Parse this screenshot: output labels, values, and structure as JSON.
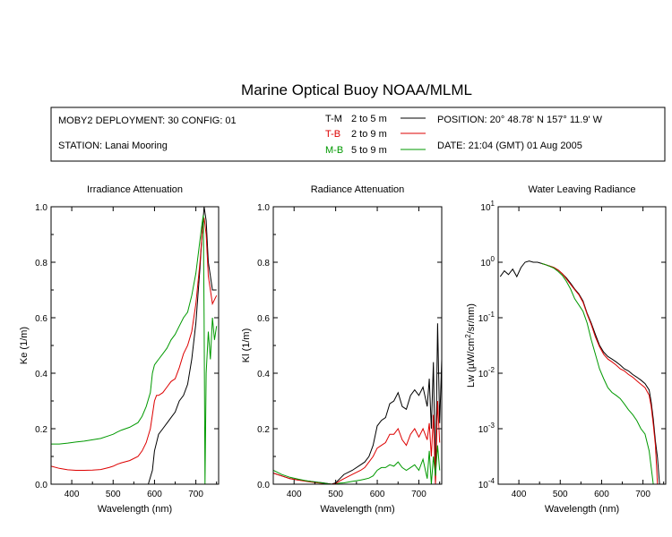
{
  "title": "Marine Optical Buoy NOAA/MLML",
  "info": {
    "deployment": "MOBY2 DEPLOYMENT: 30 CONFIG: 01",
    "station": "STATION: Lanai Mooring",
    "legend": [
      {
        "code": "T-M",
        "range": "2 to 5  m",
        "color": "#000000"
      },
      {
        "code": "T-B",
        "range": "2 to 9  m",
        "color": "#dd0000"
      },
      {
        "code": "M-B",
        "range": "5 to 9  m",
        "color": "#009900"
      }
    ],
    "position": "POSITION: 20° 48.78' N   157° 11.9' W",
    "date": "DATE: 21:04 (GMT) 01 Aug 2005"
  },
  "colors": {
    "T-M": "#000000",
    "T-B": "#dd0000",
    "M-B": "#009900"
  },
  "chart_data": [
    {
      "type": "line",
      "title": "Irradiance Attenuation",
      "xlabel": "Wavelength (nm)",
      "ylabel": "Ke  (1/m)",
      "xlim": [
        350,
        755
      ],
      "ylim": [
        0,
        1
      ],
      "xticks": [
        "400",
        "500",
        "600",
        "700"
      ],
      "xtick_values": [
        400,
        500,
        600,
        700
      ],
      "yticks": [
        "0.0",
        "0.2",
        "0.4",
        "0.6",
        "0.8",
        "1.0"
      ],
      "ytick_values": [
        0,
        0.2,
        0.4,
        0.6,
        0.8,
        1.0
      ],
      "series": [
        {
          "name": "T-M",
          "x": [
            585,
            595,
            600,
            610,
            620,
            630,
            640,
            650,
            660,
            670,
            680,
            690,
            700,
            710,
            715,
            720,
            725,
            730,
            740,
            750
          ],
          "y": [
            0.0,
            0.05,
            0.12,
            0.18,
            0.2,
            0.22,
            0.24,
            0.26,
            0.3,
            0.32,
            0.36,
            0.45,
            0.58,
            0.78,
            0.9,
            1.0,
            0.95,
            0.8,
            0.7,
            0.7
          ]
        },
        {
          "name": "T-B",
          "x": [
            350,
            370,
            390,
            410,
            430,
            450,
            470,
            490,
            500,
            510,
            520,
            540,
            560,
            570,
            580,
            590,
            595,
            600,
            605,
            610,
            620,
            630,
            640,
            650,
            660,
            670,
            680,
            690,
            700,
            710,
            715,
            720,
            725,
            730,
            740,
            750
          ],
          "y": [
            0.065,
            0.057,
            0.052,
            0.05,
            0.05,
            0.051,
            0.053,
            0.06,
            0.065,
            0.072,
            0.077,
            0.085,
            0.1,
            0.12,
            0.15,
            0.2,
            0.25,
            0.3,
            0.32,
            0.32,
            0.33,
            0.35,
            0.37,
            0.38,
            0.42,
            0.47,
            0.5,
            0.55,
            0.65,
            0.8,
            0.9,
            0.96,
            0.9,
            0.75,
            0.65,
            0.68
          ]
        },
        {
          "name": "M-B",
          "x": [
            350,
            370,
            390,
            410,
            430,
            450,
            470,
            490,
            500,
            510,
            520,
            540,
            560,
            570,
            580,
            590,
            595,
            600,
            605,
            610,
            620,
            630,
            640,
            650,
            660,
            670,
            680,
            690,
            700,
            710,
            715,
            718,
            720,
            722,
            725,
            730,
            735,
            740,
            745,
            750
          ],
          "y": [
            0.145,
            0.145,
            0.148,
            0.152,
            0.155,
            0.16,
            0.165,
            0.175,
            0.18,
            0.188,
            0.195,
            0.205,
            0.222,
            0.245,
            0.28,
            0.33,
            0.4,
            0.43,
            0.44,
            0.45,
            0.47,
            0.49,
            0.52,
            0.54,
            0.57,
            0.6,
            0.62,
            0.68,
            0.76,
            0.88,
            0.94,
            0.97,
            0.6,
            0.0,
            0.4,
            0.55,
            0.45,
            0.6,
            0.52,
            0.57
          ]
        }
      ]
    },
    {
      "type": "line",
      "title": "Radiance Attenuation",
      "xlabel": "Wavelength (nm)",
      "ylabel": "Kl  (1/m)",
      "xlim": [
        350,
        755
      ],
      "ylim": [
        0,
        1
      ],
      "xticks": [
        "400",
        "500",
        "600",
        "700"
      ],
      "xtick_values": [
        400,
        500,
        600,
        700
      ],
      "yticks": [
        "0.0",
        "0.2",
        "0.4",
        "0.6",
        "0.8",
        "1.0"
      ],
      "ytick_values": [
        0,
        0.2,
        0.4,
        0.6,
        0.8,
        1.0
      ],
      "series": [
        {
          "name": "T-M",
          "x": [
            350,
            370,
            390,
            410,
            430,
            450,
            470,
            490,
            500,
            510,
            520,
            540,
            560,
            570,
            580,
            590,
            600,
            610,
            620,
            630,
            640,
            650,
            660,
            670,
            680,
            690,
            700,
            710,
            720,
            725,
            730,
            735,
            740,
            745,
            750,
            755
          ],
          "y": [
            0.04,
            0.03,
            0.02,
            0.015,
            0.012,
            0.008,
            0.005,
            0.0,
            0.005,
            0.02,
            0.035,
            0.05,
            0.07,
            0.08,
            0.1,
            0.14,
            0.21,
            0.23,
            0.24,
            0.29,
            0.3,
            0.33,
            0.28,
            0.27,
            0.32,
            0.34,
            0.32,
            0.35,
            0.28,
            0.38,
            0.2,
            0.44,
            0.0,
            0.58,
            0.22,
            0.45
          ]
        },
        {
          "name": "T-B",
          "x": [
            350,
            370,
            390,
            410,
            430,
            450,
            470,
            490,
            500,
            510,
            520,
            540,
            560,
            570,
            580,
            590,
            600,
            610,
            620,
            630,
            640,
            650,
            660,
            670,
            680,
            690,
            700,
            710,
            720,
            725,
            730,
            735,
            740,
            745,
            750
          ],
          "y": [
            0.04,
            0.03,
            0.02,
            0.015,
            0.01,
            0.006,
            0.003,
            0.0,
            0.002,
            0.012,
            0.02,
            0.035,
            0.05,
            0.06,
            0.08,
            0.1,
            0.13,
            0.14,
            0.15,
            0.18,
            0.18,
            0.2,
            0.16,
            0.14,
            0.18,
            0.2,
            0.17,
            0.2,
            0.16,
            0.22,
            0.1,
            0.25,
            0.0,
            0.3,
            0.15
          ]
        },
        {
          "name": "M-B",
          "x": [
            350,
            370,
            390,
            410,
            430,
            450,
            470,
            490,
            500,
            510,
            520,
            540,
            560,
            570,
            580,
            590,
            600,
            610,
            620,
            630,
            640,
            650,
            660,
            670,
            680,
            690,
            700,
            710,
            720,
            725,
            730,
            735,
            740,
            745,
            750
          ],
          "y": [
            0.05,
            0.035,
            0.025,
            0.018,
            0.012,
            0.008,
            0.004,
            0.0,
            0.0,
            0.004,
            0.005,
            0.01,
            0.015,
            0.018,
            0.022,
            0.03,
            0.05,
            0.06,
            0.06,
            0.07,
            0.065,
            0.08,
            0.06,
            0.05,
            0.06,
            0.07,
            0.05,
            0.09,
            0.02,
            0.12,
            0.0,
            0.1,
            0.03,
            0.14,
            0.05
          ]
        }
      ]
    },
    {
      "type": "line",
      "title": "Water Leaving Radiance",
      "xlabel": "Wavelength (nm)",
      "ylabel": "Lw  (µW/cm²/sr/nm)",
      "xlim": [
        350,
        755
      ],
      "ylim": [
        0.0001,
        10
      ],
      "yscale": "log",
      "xticks": [
        "400",
        "500",
        "600",
        "700"
      ],
      "xtick_values": [
        400,
        500,
        600,
        700
      ],
      "yticks": [
        "10¹",
        "10⁰",
        "10⁻¹",
        "10⁻²",
        "10⁻³",
        "10⁻⁴"
      ],
      "ytick_values": [
        10,
        1,
        0.1,
        0.01,
        0.001,
        0.0001
      ],
      "series": [
        {
          "name": "T-M",
          "x": [
            355,
            365,
            375,
            385,
            395,
            405,
            415,
            425,
            435,
            445,
            455,
            465,
            475,
            485,
            495,
            505,
            515,
            525,
            535,
            545,
            555,
            565,
            575,
            585,
            595,
            605,
            615,
            625,
            635,
            645,
            655,
            665,
            675,
            685,
            695,
            705,
            715,
            720,
            725,
            730,
            735,
            740
          ],
          "y": [
            0.55,
            0.7,
            0.6,
            0.75,
            0.55,
            0.8,
            1.0,
            1.05,
            1.0,
            1.0,
            0.95,
            0.9,
            0.85,
            0.8,
            0.72,
            0.62,
            0.52,
            0.42,
            0.33,
            0.27,
            0.2,
            0.12,
            0.08,
            0.05,
            0.032,
            0.024,
            0.02,
            0.018,
            0.016,
            0.014,
            0.012,
            0.011,
            0.0095,
            0.0085,
            0.0075,
            0.0065,
            0.005,
            0.003,
            0.0015,
            0.0006,
            0.0003,
            0.0001
          ]
        },
        {
          "name": "T-B",
          "x": [
            455,
            465,
            475,
            485,
            495,
            505,
            515,
            525,
            535,
            545,
            555,
            565,
            575,
            585,
            595,
            605,
            615,
            625,
            635,
            645,
            655,
            665,
            675,
            685,
            695,
            705,
            715,
            720,
            725,
            730,
            735
          ],
          "y": [
            0.95,
            0.9,
            0.85,
            0.8,
            0.72,
            0.62,
            0.5,
            0.4,
            0.32,
            0.26,
            0.19,
            0.115,
            0.075,
            0.045,
            0.03,
            0.022,
            0.018,
            0.016,
            0.014,
            0.012,
            0.011,
            0.0095,
            0.0085,
            0.0073,
            0.0063,
            0.0055,
            0.004,
            0.0025,
            0.0012,
            0.0005,
            0.0001
          ]
        },
        {
          "name": "M-B",
          "x": [
            455,
            465,
            475,
            485,
            495,
            505,
            515,
            525,
            535,
            545,
            555,
            565,
            575,
            585,
            595,
            605,
            615,
            625,
            635,
            645,
            655,
            665,
            675,
            685,
            695,
            705,
            715,
            720,
            725
          ],
          "y": [
            0.95,
            0.9,
            0.84,
            0.78,
            0.68,
            0.58,
            0.45,
            0.33,
            0.22,
            0.17,
            0.13,
            0.08,
            0.04,
            0.022,
            0.012,
            0.008,
            0.0055,
            0.0045,
            0.004,
            0.0035,
            0.0028,
            0.0022,
            0.0018,
            0.0014,
            0.001,
            0.0008,
            0.0004,
            0.0002,
            0.0001
          ]
        }
      ]
    }
  ]
}
